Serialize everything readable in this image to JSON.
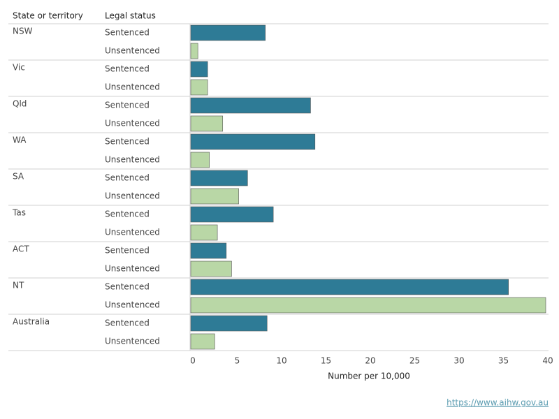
{
  "chart_data": {
    "type": "bar",
    "orientation": "horizontal",
    "category_label": "State or territory",
    "series_label": "Legal status",
    "categories": [
      "NSW",
      "Vic",
      "Qld",
      "WA",
      "SA",
      "Tas",
      "ACT",
      "NT",
      "Australia"
    ],
    "series": [
      {
        "name": "Sentenced",
        "color": "#2e7b96",
        "values": [
          8.4,
          1.9,
          13.5,
          14.0,
          6.4,
          9.3,
          4.0,
          35.8,
          8.6
        ]
      },
      {
        "name": "Unsentenced",
        "color": "#b9d7a6",
        "values": [
          0.8,
          1.9,
          3.6,
          2.1,
          5.4,
          3.0,
          4.6,
          40.0,
          2.7
        ]
      }
    ],
    "xlabel": "Number per 10,000",
    "xlim": [
      0,
      40
    ],
    "xticks": [
      0,
      5,
      10,
      15,
      20,
      25,
      30,
      35,
      40
    ],
    "grid": false,
    "source": "https://www.aihw.gov.au"
  }
}
